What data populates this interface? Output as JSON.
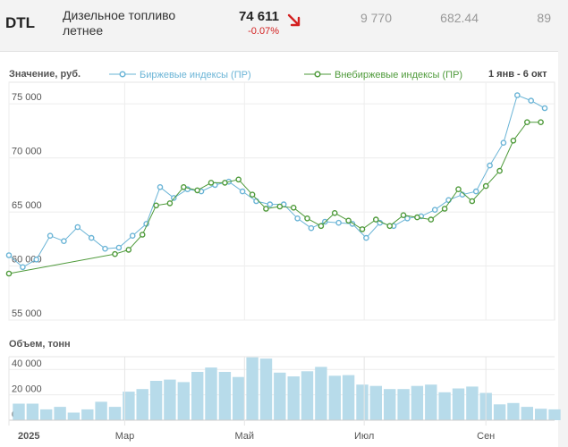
{
  "ticker": {
    "code": "DTL",
    "name": "Дизельное топливо летнее",
    "price": "74 611",
    "change": "-0.07%",
    "trend_icon": "down-right-arrow-icon",
    "deals": "9 770",
    "avg": "682.44",
    "count": "89",
    "negative_color": "#d32020"
  },
  "price_chart": {
    "ylabel": "Значение, руб.",
    "date_range": "1 янв - 6 окт"
  },
  "volume_chart": {
    "ylabel": "Объем, тонн"
  },
  "colors": {
    "exchange": "#6ab4d6",
    "otc": "#4e9a3a",
    "bar": "#b7dbea"
  },
  "chart_data": [
    {
      "type": "line",
      "title": "",
      "ylabel": "Значение, руб.",
      "ylim": [
        55000,
        77000
      ],
      "yticks": [
        "55 000",
        "60 000",
        "65 000",
        "70 000",
        "75 000"
      ],
      "xlim": [
        "2025-01-01",
        "2025-10-06"
      ],
      "grid": true,
      "legend": "top",
      "series": [
        {
          "name": "Биржевые индексы (ПР)",
          "points": [
            [
              "2025-01-01",
              61000
            ],
            [
              "2025-01-08",
              59900
            ],
            [
              "2025-01-15",
              60600
            ],
            [
              "2025-01-22",
              62800
            ],
            [
              "2025-01-29",
              62300
            ],
            [
              "2025-02-05",
              63600
            ],
            [
              "2025-02-12",
              62600
            ],
            [
              "2025-02-19",
              61600
            ],
            [
              "2025-02-26",
              61700
            ],
            [
              "2025-03-05",
              62800
            ],
            [
              "2025-03-12",
              63900
            ],
            [
              "2025-03-19",
              67300
            ],
            [
              "2025-03-26",
              66300
            ],
            [
              "2025-04-02",
              67100
            ],
            [
              "2025-04-09",
              66900
            ],
            [
              "2025-04-16",
              67500
            ],
            [
              "2025-04-23",
              67800
            ],
            [
              "2025-04-30",
              66900
            ],
            [
              "2025-05-07",
              66000
            ],
            [
              "2025-05-14",
              65700
            ],
            [
              "2025-05-21",
              65700
            ],
            [
              "2025-05-28",
              64400
            ],
            [
              "2025-06-04",
              63500
            ],
            [
              "2025-06-11",
              64100
            ],
            [
              "2025-06-18",
              64000
            ],
            [
              "2025-06-25",
              63900
            ],
            [
              "2025-07-02",
              62600
            ],
            [
              "2025-07-09",
              64000
            ],
            [
              "2025-07-16",
              63700
            ],
            [
              "2025-07-23",
              64400
            ],
            [
              "2025-07-30",
              64600
            ],
            [
              "2025-08-06",
              65200
            ],
            [
              "2025-08-13",
              66100
            ],
            [
              "2025-08-20",
              66600
            ],
            [
              "2025-08-27",
              66900
            ],
            [
              "2025-09-03",
              69300
            ],
            [
              "2025-09-10",
              71400
            ],
            [
              "2025-09-17",
              75800
            ],
            [
              "2025-09-24",
              75300
            ],
            [
              "2025-10-01",
              74600
            ]
          ]
        },
        {
          "name": "Внебиржевые индексы (ПР)",
          "points": [
            [
              "2025-01-01",
              59300
            ],
            [
              "2025-02-24",
              61100
            ],
            [
              "2025-03-03",
              61500
            ],
            [
              "2025-03-10",
              62900
            ],
            [
              "2025-03-17",
              65600
            ],
            [
              "2025-03-24",
              65800
            ],
            [
              "2025-03-31",
              67300
            ],
            [
              "2025-04-07",
              67000
            ],
            [
              "2025-04-14",
              67700
            ],
            [
              "2025-04-21",
              67700
            ],
            [
              "2025-04-28",
              68000
            ],
            [
              "2025-05-05",
              66600
            ],
            [
              "2025-05-12",
              65300
            ],
            [
              "2025-05-19",
              65500
            ],
            [
              "2025-05-26",
              65400
            ],
            [
              "2025-06-02",
              64400
            ],
            [
              "2025-06-09",
              63700
            ],
            [
              "2025-06-16",
              64900
            ],
            [
              "2025-06-23",
              64200
            ],
            [
              "2025-06-30",
              63400
            ],
            [
              "2025-07-07",
              64300
            ],
            [
              "2025-07-14",
              63700
            ],
            [
              "2025-07-21",
              64700
            ],
            [
              "2025-07-28",
              64500
            ],
            [
              "2025-08-04",
              64300
            ],
            [
              "2025-08-11",
              65300
            ],
            [
              "2025-08-18",
              67100
            ],
            [
              "2025-08-25",
              66000
            ],
            [
              "2025-09-01",
              67400
            ],
            [
              "2025-09-08",
              68800
            ],
            [
              "2025-09-15",
              71600
            ],
            [
              "2025-09-22",
              73300
            ],
            [
              "2025-09-29",
              73300
            ]
          ]
        }
      ]
    },
    {
      "type": "bar",
      "title": "",
      "ylabel": "Объем, тонн",
      "ylim": [
        0,
        50000
      ],
      "yticks": [
        "0",
        "20 000",
        "40 000"
      ],
      "xticks": [
        {
          "label": "2025",
          "date": "2025-01-01"
        },
        {
          "label": "Мар",
          "date": "2025-03-01"
        },
        {
          "label": "Май",
          "date": "2025-05-01"
        },
        {
          "label": "Июл",
          "date": "2025-07-01"
        },
        {
          "label": "Сен",
          "date": "2025-09-01"
        }
      ],
      "x": [
        "2025-01-06",
        "2025-01-13",
        "2025-01-20",
        "2025-01-27",
        "2025-02-03",
        "2025-02-10",
        "2025-02-17",
        "2025-02-24",
        "2025-03-03",
        "2025-03-10",
        "2025-03-17",
        "2025-03-24",
        "2025-03-31",
        "2025-04-07",
        "2025-04-14",
        "2025-04-21",
        "2025-04-28",
        "2025-05-05",
        "2025-05-12",
        "2025-05-19",
        "2025-05-26",
        "2025-06-02",
        "2025-06-09",
        "2025-06-16",
        "2025-06-23",
        "2025-06-30",
        "2025-07-07",
        "2025-07-14",
        "2025-07-21",
        "2025-07-28",
        "2025-08-04",
        "2025-08-11",
        "2025-08-18",
        "2025-08-25",
        "2025-09-01",
        "2025-09-08",
        "2025-09-15",
        "2025-09-22",
        "2025-09-29",
        "2025-10-06"
      ],
      "values": [
        13000,
        13000,
        8500,
        10500,
        6000,
        8500,
        14500,
        10500,
        22500,
        24500,
        31000,
        32000,
        30000,
        38000,
        41500,
        38000,
        34000,
        49500,
        48500,
        37500,
        34500,
        38500,
        42000,
        35000,
        35500,
        28000,
        27000,
        24500,
        24500,
        27000,
        28000,
        22000,
        25000,
        26500,
        21500,
        12500,
        13500,
        10500,
        9000,
        8500
      ]
    }
  ]
}
